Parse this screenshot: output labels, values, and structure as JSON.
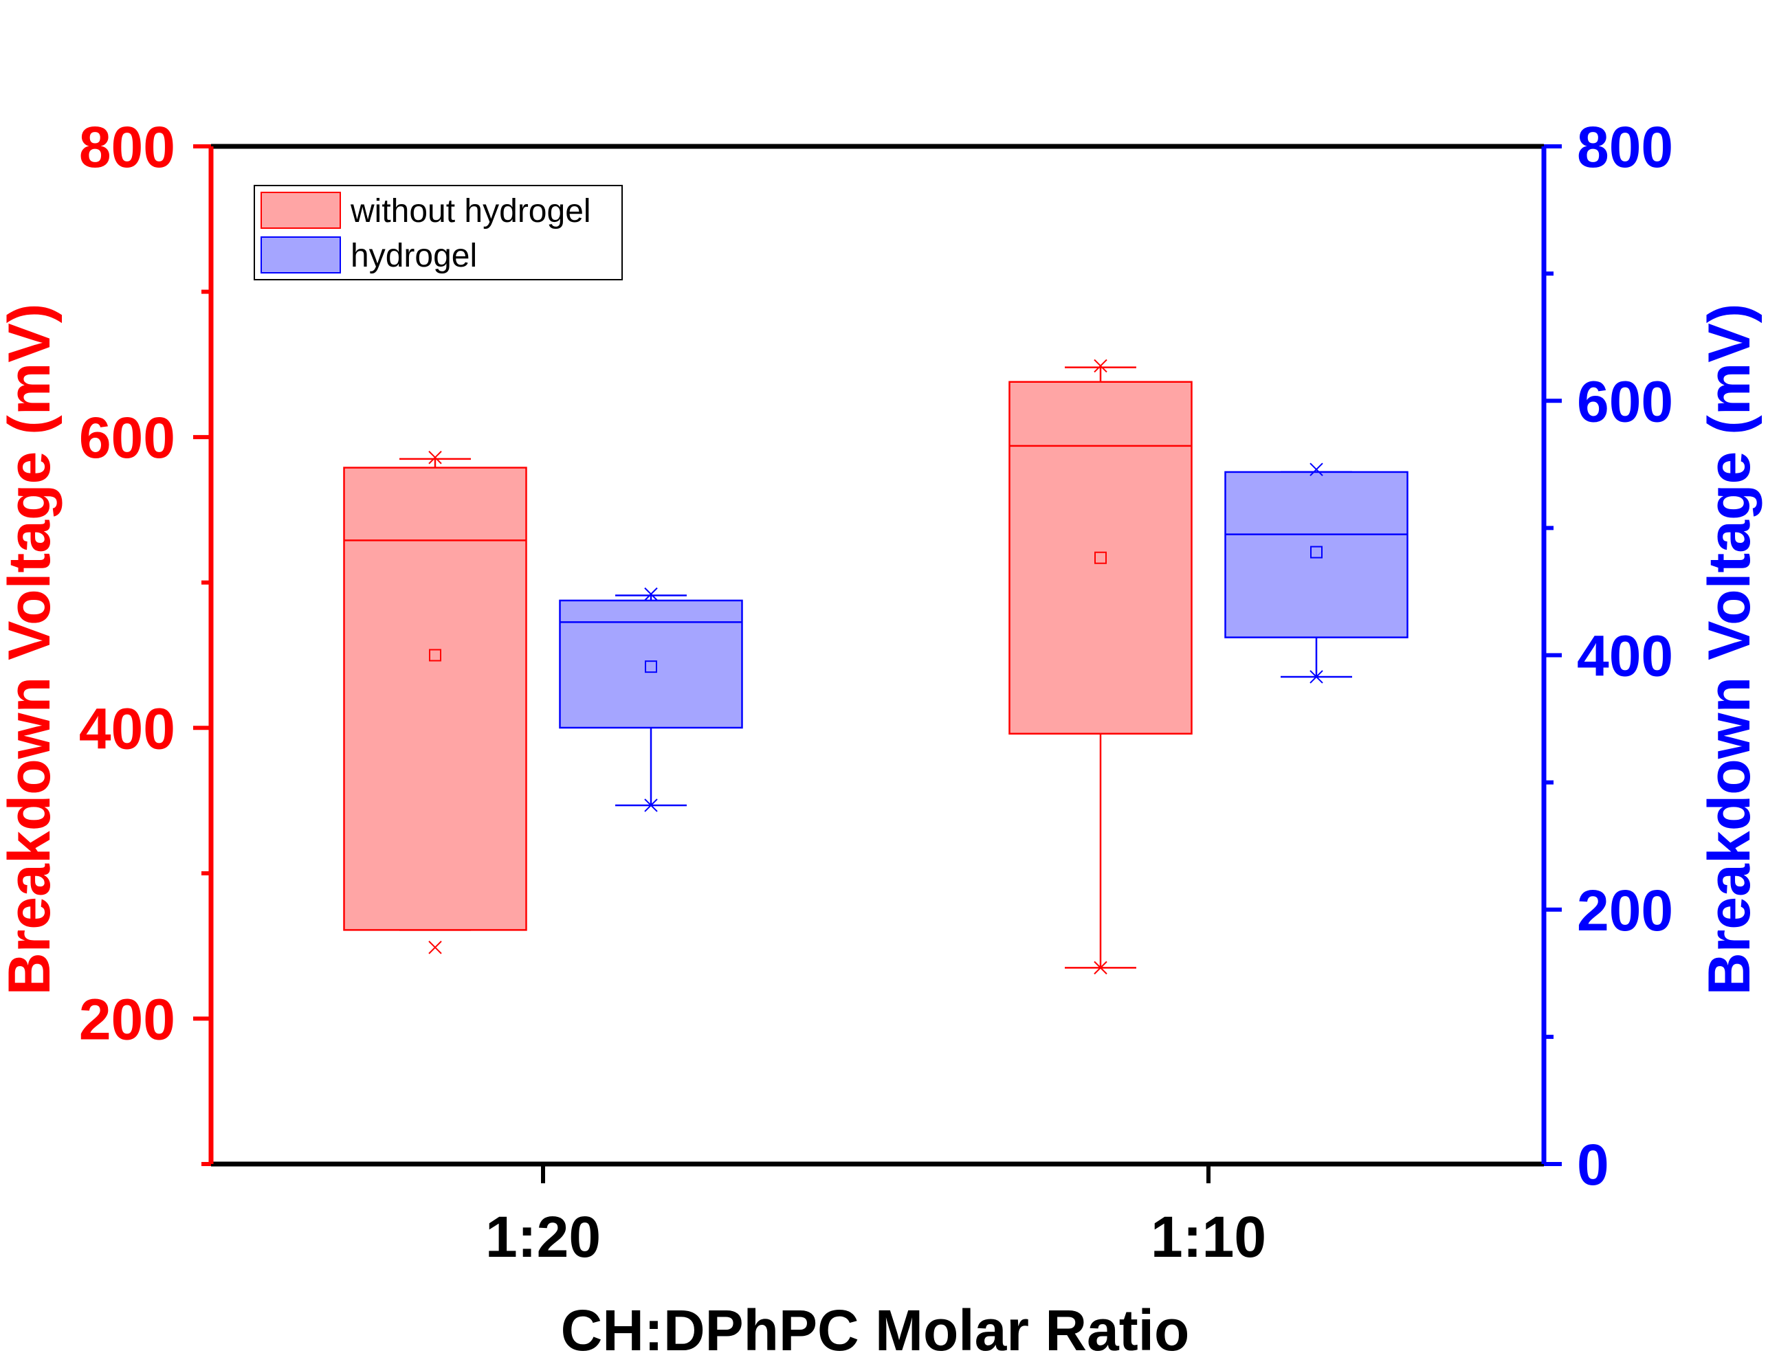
{
  "chart_data": {
    "type": "box",
    "categories": [
      "1:20",
      "1:10"
    ],
    "xlabel": "CH:DPhPC Molar Ratio",
    "ylabel_left": "Breakdown Voltage (mV)",
    "ylabel_right": "Breakdown Voltage (mV)",
    "ylim_left": [
      100,
      800
    ],
    "ylim_right": [
      0,
      800
    ],
    "yticks_left": [
      "200",
      "400",
      "600",
      "800"
    ],
    "yticks_right": [
      "0",
      "200",
      "400",
      "600",
      "800"
    ],
    "legend_position": "top-left",
    "series": [
      {
        "name": "without hydrogel",
        "axis": "left",
        "color": "#ff0000",
        "fill": "#ffa5a5",
        "boxes": [
          {
            "category": "1:20",
            "q1": 261,
            "median": 529,
            "q3": 579,
            "whisker_low": 261,
            "whisker_high": 585,
            "mean": 450,
            "min": 249,
            "max": 586
          },
          {
            "category": "1:10",
            "q1": 396,
            "median": 594,
            "q3": 638,
            "whisker_low": 235,
            "whisker_high": 648,
            "mean": 517,
            "min": 235,
            "max": 649
          }
        ]
      },
      {
        "name": "hydrogel",
        "axis": "right",
        "color": "#0000ff",
        "fill": "#a5a5ff",
        "boxes": [
          {
            "category": "1:20",
            "q1": 343,
            "median": 426,
            "q3": 443,
            "whisker_low": 282,
            "whisker_high": 447,
            "mean": 391,
            "min": 282,
            "max": 448
          },
          {
            "category": "1:10",
            "q1": 414,
            "median": 495,
            "q3": 544,
            "whisker_low": 383,
            "whisker_high": 544,
            "mean": 481,
            "min": 383,
            "max": 546
          }
        ]
      }
    ]
  }
}
